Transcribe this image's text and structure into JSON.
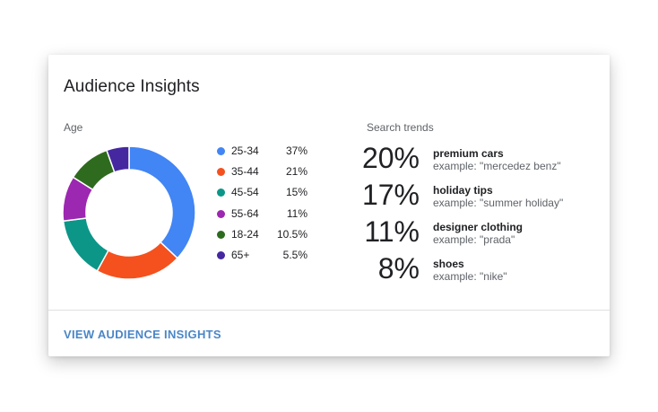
{
  "card": {
    "title": "Audience Insights",
    "age_label": "Age",
    "trends_label": "Search trends",
    "link_label": "VIEW AUDIENCE INSIGHTS"
  },
  "chart_data": {
    "type": "pie",
    "title": "Age",
    "donut": true,
    "categories": [
      "25-34",
      "35-44",
      "45-54",
      "55-64",
      "18-24",
      "65+"
    ],
    "values": [
      37,
      21,
      15,
      11,
      10.5,
      5.5
    ],
    "labels": [
      "37%",
      "21%",
      "15%",
      "11%",
      "10.5%",
      "5.5%"
    ],
    "colors": [
      "#4285f4",
      "#f4511e",
      "#0b9688",
      "#9c27b0",
      "#2e6b1e",
      "#4527a0"
    ]
  },
  "trends": [
    {
      "pct": "20%",
      "name": "premium cars",
      "example": "example: \"mercedez benz\""
    },
    {
      "pct": "17%",
      "name": "holiday tips",
      "example": "example: \"summer holiday\""
    },
    {
      "pct": "11%",
      "name": "designer clothing",
      "example": "example: \"prada\""
    },
    {
      "pct": "8%",
      "name": "shoes",
      "example": "example: \"nike\""
    }
  ]
}
